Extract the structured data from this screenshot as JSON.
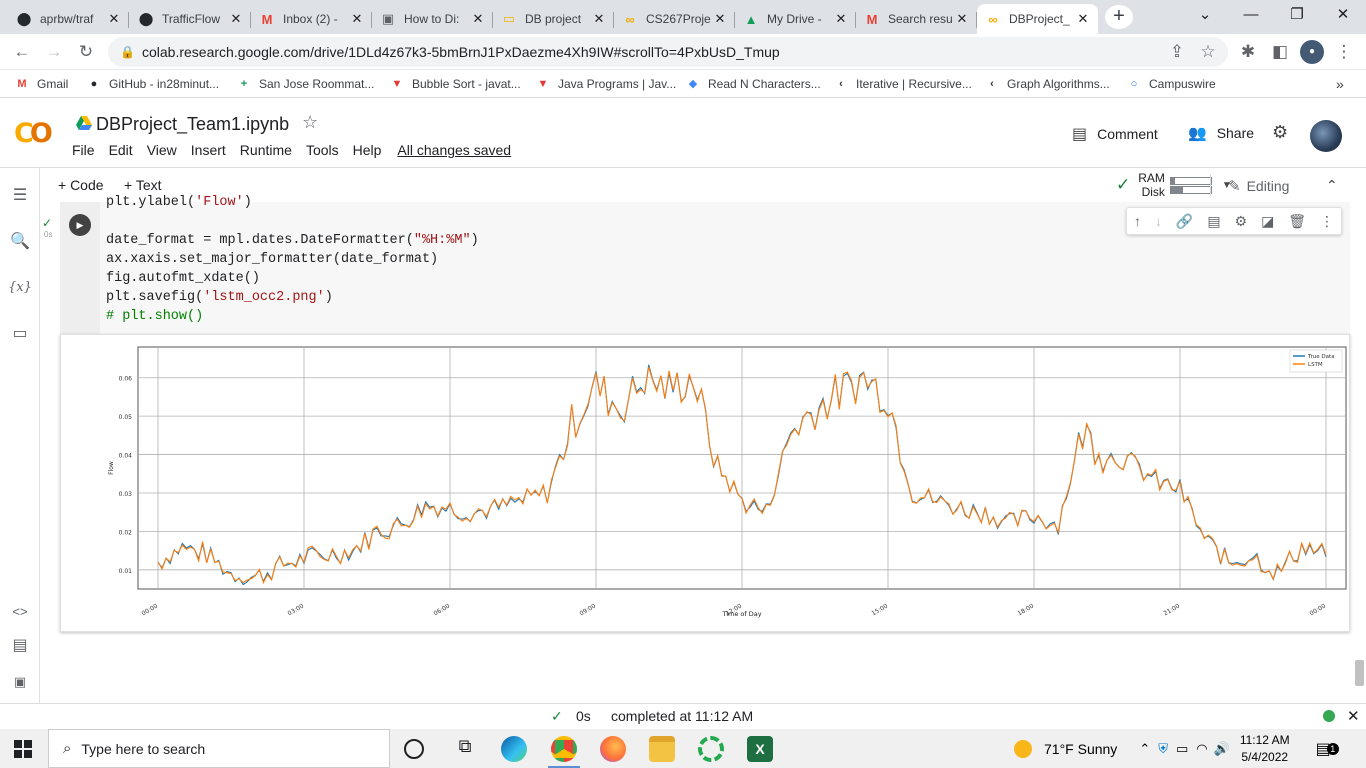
{
  "browser": {
    "tabs": [
      {
        "label": "aprbw/traf",
        "favicon": "github-icon",
        "color": "#24292e",
        "glyph": "⬤"
      },
      {
        "label": "TrafficFlow",
        "favicon": "github-icon",
        "color": "#24292e",
        "glyph": "⬤"
      },
      {
        "label": "Inbox (2) -",
        "favicon": "gmail-icon",
        "color": "#ea4335",
        "glyph": "M"
      },
      {
        "label": "How to Di:",
        "favicon": "page-icon",
        "color": "#5f6368",
        "glyph": "▣"
      },
      {
        "label": "DB project",
        "favicon": "slides-icon",
        "color": "#f4b400",
        "glyph": "▭"
      },
      {
        "label": "CS267Proje",
        "favicon": "colab-icon",
        "color": "#f9ab00",
        "glyph": "∞"
      },
      {
        "label": "My Drive -",
        "favicon": "drive-icon",
        "color": "#0f9d58",
        "glyph": "▲"
      },
      {
        "label": "Search resu",
        "favicon": "gmail-icon",
        "color": "#ea4335",
        "glyph": "M"
      },
      {
        "label": "DBProject_",
        "favicon": "colab-icon",
        "color": "#f9ab00",
        "glyph": "∞"
      }
    ],
    "url": "colab.research.google.com/drive/1DLd4z67k3-5bmBrnJ1PxDaezme4Xh9IW#scrollTo=4PxbUsD_Tmup"
  },
  "bookmarks": [
    {
      "label": "Gmail",
      "icon": "gmail-icon",
      "glyph": "M",
      "color": "#ea4335"
    },
    {
      "label": "GitHub - in28minut...",
      "icon": "github-icon",
      "glyph": "●",
      "color": "#24292e"
    },
    {
      "label": "San Jose Roommat...",
      "icon": "plus-icon",
      "glyph": "+",
      "color": "#0f9d58"
    },
    {
      "label": "Bubble Sort - javat...",
      "icon": "javatpoint-icon",
      "glyph": "▼",
      "color": "#e53935"
    },
    {
      "label": "Java Programs | Jav...",
      "icon": "javatpoint-icon",
      "glyph": "▼",
      "color": "#e53935"
    },
    {
      "label": "Read N Characters...",
      "icon": "leetcode-icon",
      "glyph": "◆",
      "color": "#4285f4"
    },
    {
      "label": "Iterative | Recursive...",
      "icon": "leetcode-icon",
      "glyph": "‹",
      "color": "#333333"
    },
    {
      "label": "Graph Algorithms...",
      "icon": "leetcode-icon",
      "glyph": "‹",
      "color": "#333333"
    },
    {
      "label": "Campuswire",
      "icon": "campuswire-icon",
      "glyph": "○",
      "color": "#1a73e8"
    }
  ],
  "colab": {
    "notebook_title": "DBProject_Team1.ipynb",
    "menus": [
      "File",
      "Edit",
      "View",
      "Insert",
      "Runtime",
      "Tools",
      "Help"
    ],
    "saved_status": "All changes saved",
    "comment_label": "Comment",
    "share_label": "Share",
    "add_code": "+ Code",
    "add_text": "+ Text",
    "ram_label": "RAM",
    "disk_label": "Disk",
    "ram_fraction": 0.1,
    "disk_fraction": 0.3,
    "editing_label": "Editing",
    "exec_time": "0s",
    "status_time": "0s",
    "status_text": "completed at 11:12 AM"
  },
  "code_lines": [
    {
      "text": "plt.ylabel(",
      "str": "'Flow'",
      "tail": ")"
    },
    {
      "text": "",
      "str": "",
      "tail": ""
    },
    {
      "text": "date_format = mpl.dates.DateFormatter(",
      "str": "\"%H:%M\"",
      "tail": ")"
    },
    {
      "text": "ax.xaxis.set_major_formatter(date_format)",
      "str": "",
      "tail": ""
    },
    {
      "text": "fig.autofmt_xdate()",
      "str": "",
      "tail": ""
    },
    {
      "text": "plt.savefig(",
      "str": "'lstm_occ2.png'",
      "tail": ")"
    },
    {
      "comment": "# plt.show()"
    }
  ],
  "chart_data": {
    "type": "line",
    "xlabel": "Time of Day",
    "ylabel": "Flow",
    "x_ticks": [
      "00:00",
      "03:00",
      "06:00",
      "09:00",
      "12:00",
      "15:00",
      "18:00",
      "21:00",
      "00:00"
    ],
    "y_ticks": [
      "0.01",
      "0.02",
      "0.03",
      "0.04",
      "0.05",
      "0.06"
    ],
    "xlim": [
      0,
      24
    ],
    "ylim": [
      0.005,
      0.068
    ],
    "grid": true,
    "legend_position": "top-right",
    "series": [
      {
        "name": "True Data",
        "color": "#1f77b4"
      },
      {
        "name": "LSTM",
        "color": "#ff7f0e"
      }
    ],
    "x_hours": [
      0,
      0.5,
      1,
      1.5,
      2,
      2.5,
      3,
      3.5,
      4,
      4.5,
      5,
      5.5,
      6,
      6.5,
      7,
      7.5,
      8,
      8.5,
      9,
      9.5,
      10,
      10.5,
      11,
      11.5,
      12,
      12.5,
      13,
      13.5,
      14,
      14.5,
      15,
      15.5,
      16,
      16.5,
      17,
      17.5,
      18,
      18.5,
      19,
      19.5,
      20,
      20.5,
      21,
      21.5,
      22,
      22.5,
      23,
      23.5,
      24
    ],
    "values": [
      0.012,
      0.016,
      0.014,
      0.009,
      0.008,
      0.011,
      0.013,
      0.014,
      0.015,
      0.02,
      0.022,
      0.027,
      0.026,
      0.025,
      0.026,
      0.028,
      0.03,
      0.048,
      0.058,
      0.052,
      0.06,
      0.057,
      0.06,
      0.037,
      0.028,
      0.025,
      0.046,
      0.052,
      0.056,
      0.06,
      0.055,
      0.03,
      0.028,
      0.026,
      0.025,
      0.022,
      0.024,
      0.022,
      0.046,
      0.04,
      0.038,
      0.033,
      0.031,
      0.018,
      0.012,
      0.014,
      0.009,
      0.016,
      0.014
    ]
  },
  "taskbar": {
    "search_placeholder": "Type here to search",
    "weather": "71°F  Sunny",
    "time": "11:12 AM",
    "date": "5/4/2022",
    "notif_count": "1"
  }
}
